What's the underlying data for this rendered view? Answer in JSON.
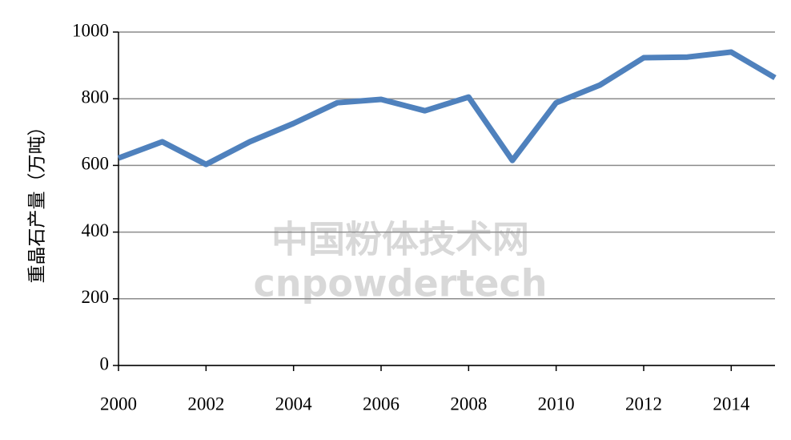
{
  "chart_data": {
    "type": "line",
    "y_label": "重晶石产量（万吨）",
    "watermark": [
      "中国粉体技术网",
      "cnpowdertech"
    ],
    "x": [
      2000,
      2001,
      2002,
      2003,
      2004,
      2005,
      2006,
      2007,
      2008,
      2009,
      2010,
      2011,
      2012,
      2013,
      2014,
      2015
    ],
    "series": [
      {
        "color": "#4f81bd",
        "values": [
          622,
          671,
          603,
          671,
          726,
          788,
          798,
          764,
          805,
          615,
          788,
          841,
          923,
          925,
          940,
          863
        ]
      }
    ],
    "xlim": [
      2000,
      2015
    ],
    "xticks": [
      2000,
      2002,
      2004,
      2006,
      2008,
      2010,
      2012,
      2014
    ],
    "ylim": [
      0,
      1000
    ],
    "yticks": [
      0,
      200,
      400,
      600,
      800,
      1000
    ],
    "grid": true
  }
}
